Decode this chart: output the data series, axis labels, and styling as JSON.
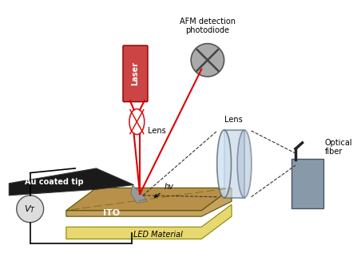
{
  "bg_color": "#ffffff",
  "labels": {
    "afm": "AFM detection\nphotodiode",
    "optical_fiber": "Optical\nfiber",
    "laser": "Laser",
    "lens1": "Lens",
    "lens2": "Lens",
    "au_tip": "Au coated tip",
    "ito": "ITO",
    "led": "LED Material",
    "hv": "hv",
    "vt": "$V_T$"
  },
  "colors": {
    "bg_color": "#ffffff",
    "red": "#dd0000",
    "laser_body": "#cc4444",
    "tip_dark": "#1a1a1a",
    "ito_yellow": "#e8d870",
    "ito_tan": "#c8a060",
    "ito_top": "#b8904a",
    "lens_cyl": "#aabbcc",
    "photodiode_gray": "#aaaaaa",
    "optical_box": "#8899aa",
    "wire_color": "#111111",
    "vt_gray": "#dddddd",
    "dashed_color": "#333333"
  }
}
